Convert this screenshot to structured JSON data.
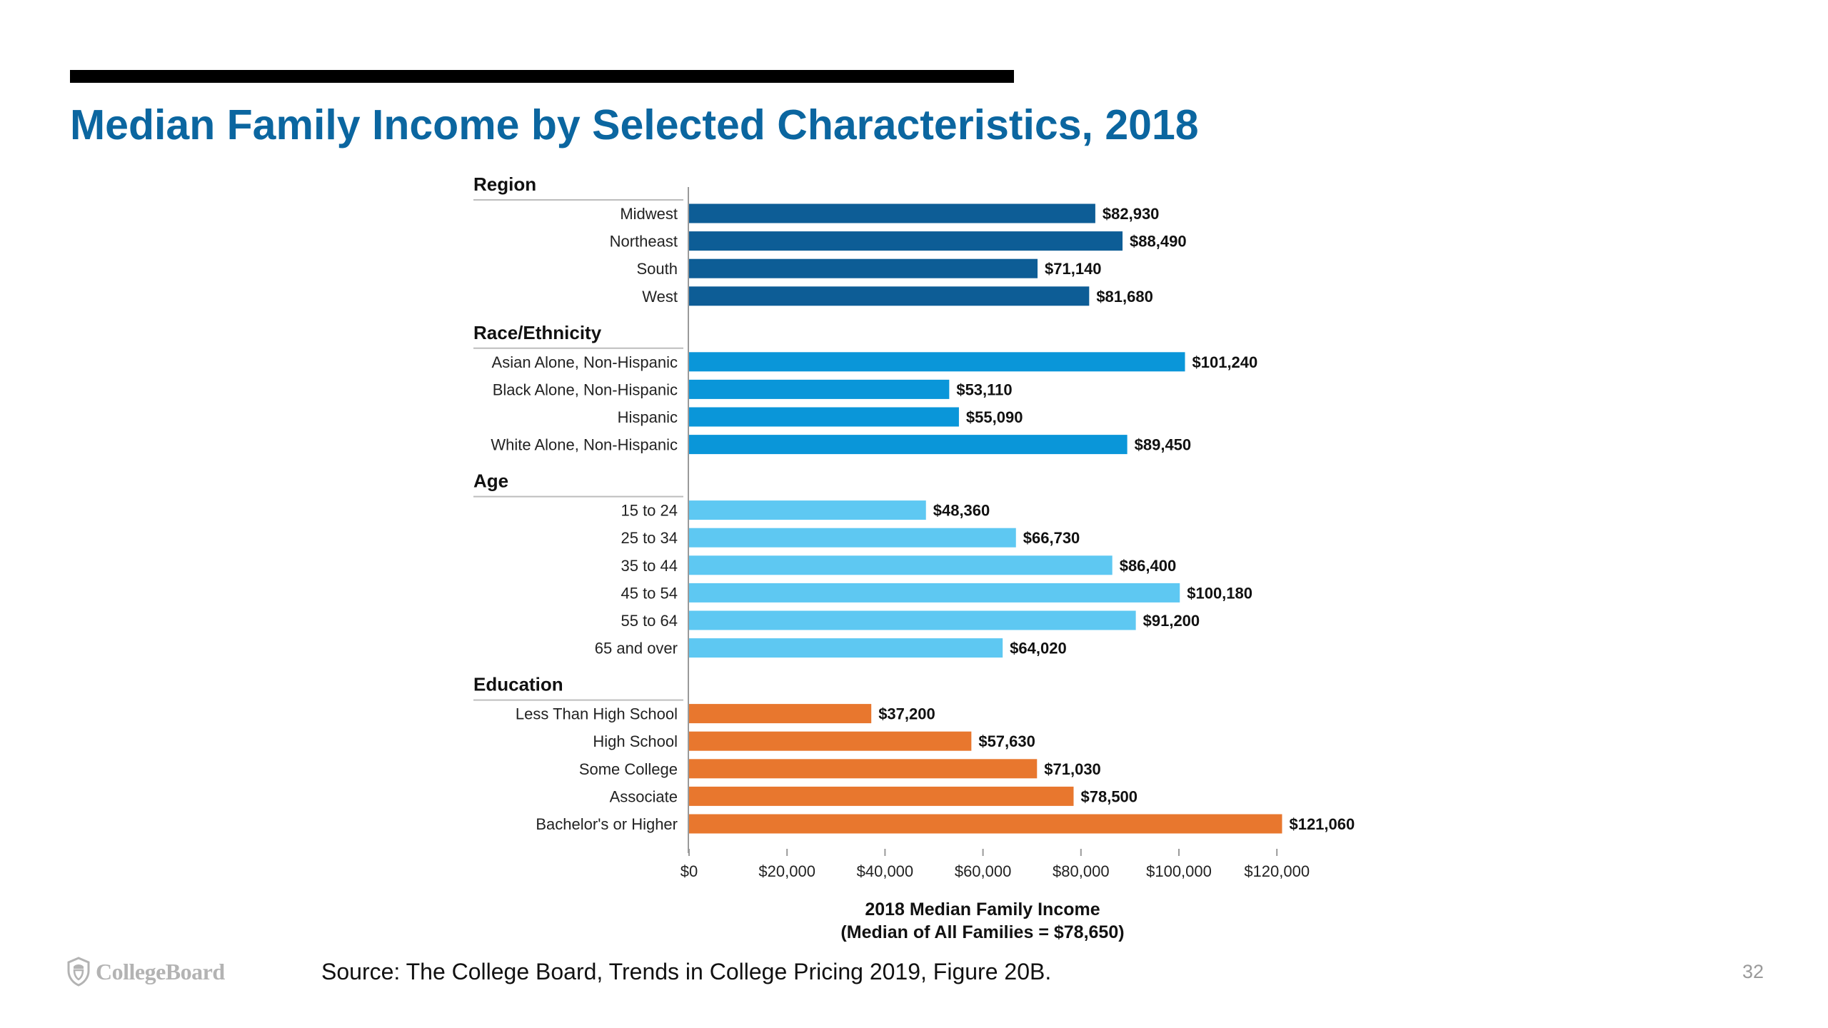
{
  "slide": {
    "title": "Median Family Income by Selected Characteristics, 2018",
    "source": "Source: The College Board, Trends in College Pricing 2019, Figure 20B.",
    "page_number": "32",
    "logo_text": "CollegeBoard",
    "logo_icon": "acorn-shield-icon"
  },
  "chart_data": {
    "type": "bar",
    "orientation": "horizontal",
    "title": "",
    "xlabel": "2018 Median Family Income",
    "xlabel_sub": "(Median of All Families = $78,650)",
    "xlim": [
      0,
      120000
    ],
    "x_ticks": [
      0,
      20000,
      40000,
      60000,
      80000,
      100000,
      120000
    ],
    "x_tick_labels": [
      "$0",
      "$20,000",
      "$40,000",
      "$60,000",
      "$80,000",
      "$100,000",
      "$120,000"
    ],
    "grid": false,
    "groups": [
      {
        "name": "Region",
        "color": "#0d5d96",
        "categories": [
          "Midwest",
          "Northeast",
          "South",
          "West"
        ],
        "values": [
          82930,
          88490,
          71140,
          81680
        ],
        "labels": [
          "$82,930",
          "$88,490",
          "$71,140",
          "$81,680"
        ]
      },
      {
        "name": "Race/Ethnicity",
        "color": "#0a96d9",
        "categories": [
          "Asian Alone, Non-Hispanic",
          "Black Alone, Non-Hispanic",
          "Hispanic",
          "White Alone, Non-Hispanic"
        ],
        "values": [
          101240,
          53110,
          55090,
          89450
        ],
        "labels": [
          "$101,240",
          "$53,110",
          "$55,090",
          "$89,450"
        ]
      },
      {
        "name": "Age",
        "color": "#5ec8f2",
        "categories": [
          "15 to 24",
          "25 to 34",
          "35 to 44",
          "45 to 54",
          "55 to 64",
          "65 and over"
        ],
        "values": [
          48360,
          66730,
          86400,
          100180,
          91200,
          64020
        ],
        "labels": [
          "$48,360",
          "$66,730",
          "$86,400",
          "$100,180",
          "$91,200",
          "$64,020"
        ]
      },
      {
        "name": "Education",
        "color": "#e8772e",
        "categories": [
          "Less Than High School",
          "High School",
          "Some College",
          "Associate",
          "Bachelor's or Higher"
        ],
        "values": [
          37200,
          57630,
          71030,
          78500,
          121060
        ],
        "labels": [
          "$37,200",
          "$57,630",
          "$71,030",
          "$78,500",
          "$121,060"
        ]
      }
    ]
  }
}
